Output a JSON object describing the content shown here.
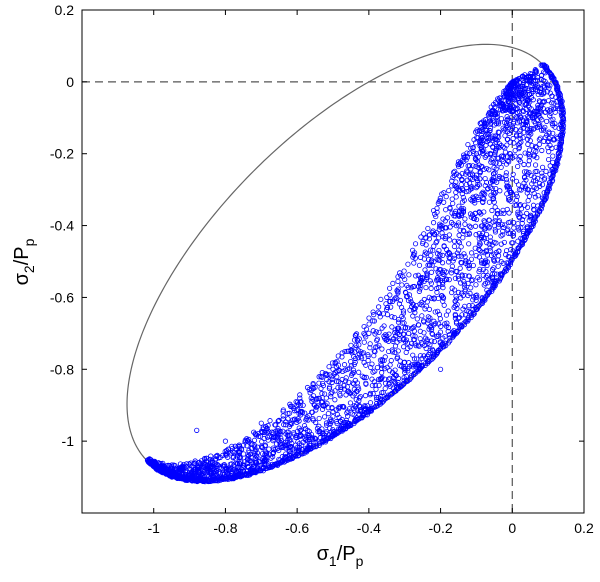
{
  "chart_data": {
    "type": "scatter",
    "title": "",
    "xlabel": {
      "main": "σ",
      "sub1": "1",
      "mid": "/P",
      "sub2": "p"
    },
    "ylabel": {
      "main": "σ",
      "sub1": "2",
      "mid": "/P",
      "sub2": "p"
    },
    "xlim": [
      -1.2,
      0.2
    ],
    "ylim": [
      -1.2,
      0.2
    ],
    "xticks": [
      -1,
      -0.8,
      -0.6,
      -0.4,
      -0.2,
      0,
      0.2
    ],
    "xtick_labels": [
      "-1",
      "-0.8",
      "-0.6",
      "-0.4",
      "-0.2",
      "0",
      "0.2"
    ],
    "yticks": [
      -1,
      -0.8,
      -0.6,
      -0.4,
      -0.2,
      0,
      0.2
    ],
    "ytick_labels": [
      "-1",
      "-0.8",
      "-0.6",
      "-0.4",
      "-0.2",
      "0",
      "0.2"
    ],
    "grid": false,
    "reference_lines": {
      "x": 0,
      "y": 0,
      "style": "dashed",
      "color": "#555555"
    },
    "envelope": {
      "kind": "ellipse",
      "color": "#666666",
      "center": [
        -0.467,
        -0.503
      ],
      "semi_axes": [
        0.78,
        0.36
      ],
      "angle_deg": 45
    },
    "scatter": {
      "marker": "circle-open",
      "color": "#0000ff",
      "count": 3000,
      "region": "lower-right part of envelope, dense near boundary arc from (-0.98,-1.01) to (0,0)",
      "sample_points": [
        [
          -0.03,
          -0.06
        ],
        [
          -0.05,
          -0.12
        ],
        [
          -0.1,
          -0.2
        ],
        [
          -0.15,
          -0.3
        ],
        [
          -0.2,
          -0.4
        ],
        [
          -0.25,
          -0.45
        ],
        [
          -0.3,
          -0.55
        ],
        [
          -0.35,
          -0.6
        ],
        [
          -0.4,
          -0.7
        ],
        [
          -0.45,
          -0.75
        ],
        [
          -0.5,
          -0.8
        ],
        [
          -0.55,
          -0.85
        ],
        [
          -0.6,
          -0.9
        ],
        [
          -0.7,
          -0.95
        ],
        [
          -0.8,
          -1.0
        ],
        [
          -0.88,
          -0.97
        ],
        [
          -0.05,
          -0.4
        ],
        [
          0.02,
          -0.3
        ],
        [
          -0.1,
          -0.6
        ],
        [
          -0.2,
          -0.8
        ]
      ]
    }
  }
}
